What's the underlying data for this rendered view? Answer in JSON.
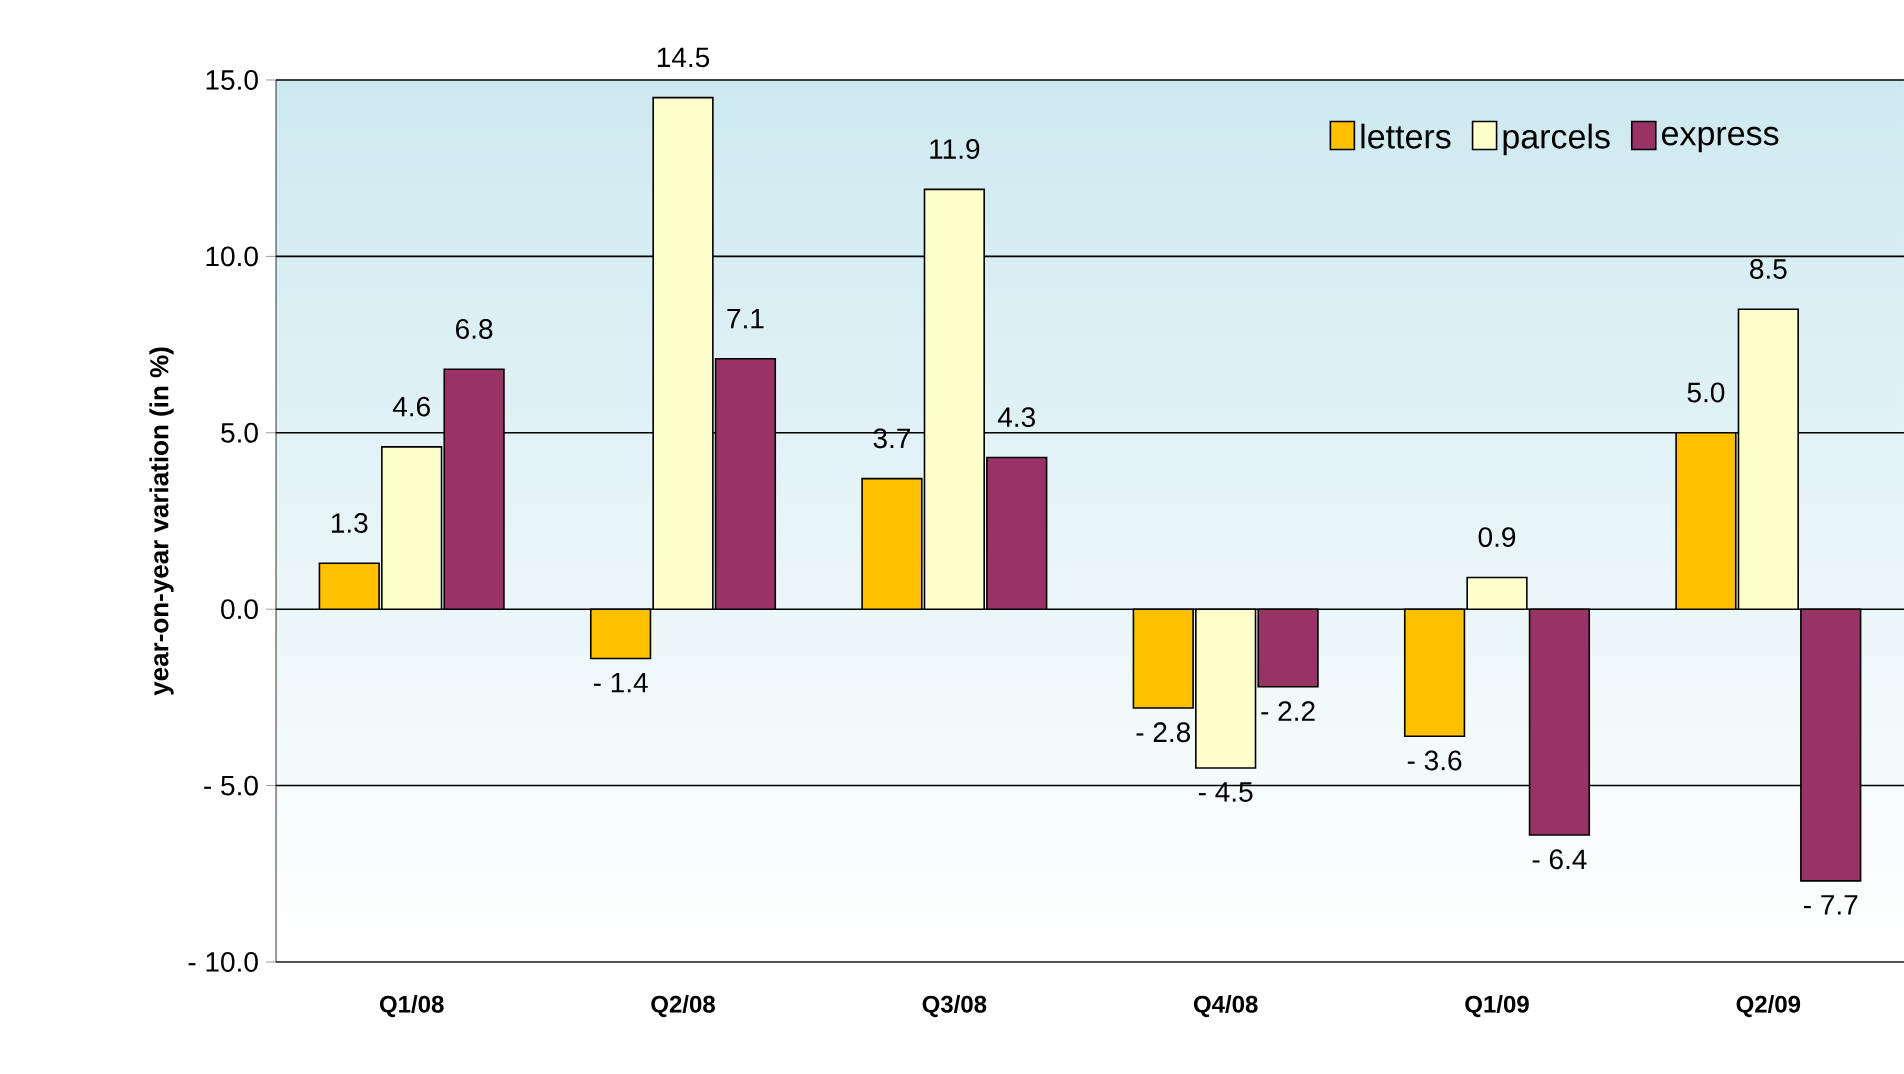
{
  "chart_data": {
    "type": "bar",
    "ylabel": "year-on-year variation (in %)",
    "categories": [
      "Q1/08",
      "Q2/08",
      "Q3/08",
      "Q4/08",
      "Q1/09",
      "Q2/09"
    ],
    "series": [
      {
        "name": "letters",
        "color": "#ffc000",
        "values": [
          1.3,
          -1.4,
          3.7,
          -2.8,
          -3.6,
          5.0
        ],
        "value_labels": [
          "1.3",
          "- 1.4",
          "3.7",
          "- 2.8",
          "- 3.6",
          "5.0"
        ]
      },
      {
        "name": "parcels",
        "color": "#ffffcc",
        "values": [
          4.6,
          14.5,
          11.9,
          -4.5,
          0.9,
          8.5
        ],
        "value_labels": [
          "4.6",
          "14.5",
          "11.9",
          "- 4.5",
          "0.9",
          "8.5"
        ]
      },
      {
        "name": "express",
        "color": "#993366",
        "values": [
          6.8,
          7.1,
          4.3,
          -2.2,
          -6.4,
          -7.7
        ],
        "value_labels": [
          "6.8",
          "7.1",
          "4.3",
          "- 2.2",
          "- 6.4",
          "- 7.7"
        ]
      }
    ],
    "ylim": [
      -10,
      15
    ],
    "yticks": [
      {
        "value": -10,
        "label": "- 10.0"
      },
      {
        "value": -5,
        "label": "- 5.0"
      },
      {
        "value": 0,
        "label": "0.0"
      },
      {
        "value": 5,
        "label": "5.0"
      },
      {
        "value": 10,
        "label": "10.0"
      },
      {
        "value": 15,
        "label": "15.0"
      }
    ],
    "grid": "y",
    "legend": "top right"
  }
}
